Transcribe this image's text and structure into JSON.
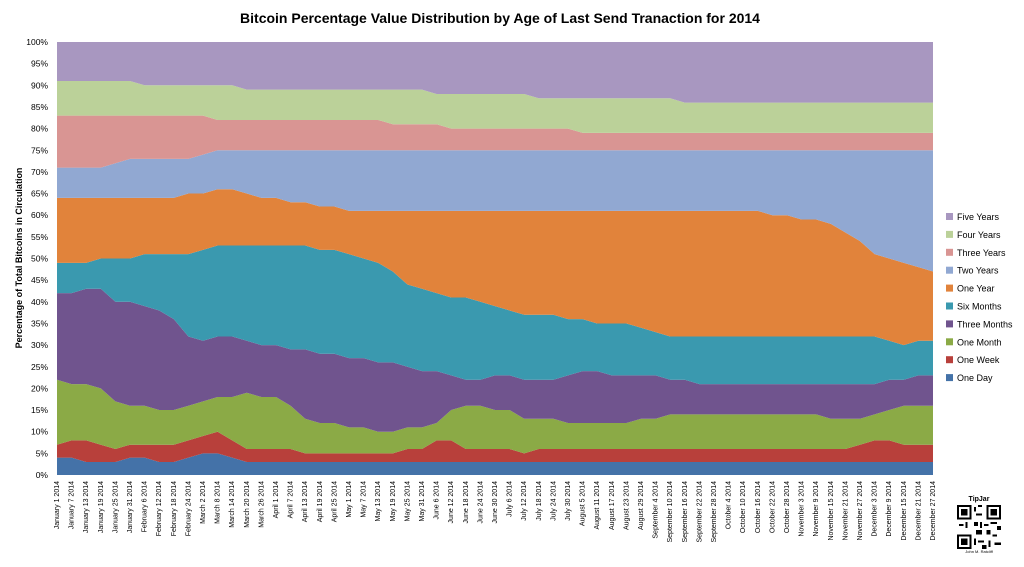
{
  "chart_data": {
    "type": "area",
    "stacked": true,
    "normalized": true,
    "title": "Bitcoin Percentage Value Distribution by Age of Last Send Tranaction for 2014",
    "ylabel": "Percentage of Total Bitcoins in Circulation",
    "xlabel": "",
    "ylim": [
      0,
      100
    ],
    "yticks": [
      "0%",
      "5%",
      "10%",
      "15%",
      "20%",
      "25%",
      "30%",
      "35%",
      "40%",
      "45%",
      "50%",
      "55%",
      "60%",
      "65%",
      "70%",
      "75%",
      "80%",
      "85%",
      "90%",
      "95%",
      "100%"
    ],
    "categories": [
      "January 1 2014",
      "January 7 2014",
      "January 13 2014",
      "January 19 2014",
      "January 25 2014",
      "January 31 2014",
      "February 6 2014",
      "February 12 2014",
      "February 18 2014",
      "February 24 2014",
      "March 2 2014",
      "March 8 2014",
      "March 14 2014",
      "March 20 2014",
      "March 26 2014",
      "April 1 2014",
      "April 7 2014",
      "April 13 2014",
      "April 19 2014",
      "April 25 2014",
      "May 1 2014",
      "May 7 2014",
      "May 13 2014",
      "May 19 2014",
      "May 25 2014",
      "May 31 2014",
      "June 6 2014",
      "June 12 2014",
      "June 18 2014",
      "June 24 2014",
      "June 30 2014",
      "July 6 2014",
      "July 12 2014",
      "July 18 2014",
      "July 24 2014",
      "July 30 2014",
      "August 5 2014",
      "August 11 2014",
      "August 17 2014",
      "August 23 2014",
      "August 29 2014",
      "September 4 2014",
      "September 10 2014",
      "September 16 2014",
      "September 22 2014",
      "September 28 2014",
      "October 4 2014",
      "October 10 2014",
      "October 16 2014",
      "October 22 2014",
      "October 28 2014",
      "November 3 2014",
      "November 9 2014",
      "November 15 2014",
      "November 21 2014",
      "November 27 2014",
      "December 3 2014",
      "December 9 2014",
      "December 15 2014",
      "December 21 2014",
      "December 27 2014"
    ],
    "cumulative_upper_bounds_percent": {
      "One Day": [
        4,
        4,
        3,
        3,
        3,
        4,
        4,
        3,
        3,
        4,
        5,
        5,
        4,
        3,
        3,
        3,
        3,
        3,
        3,
        3,
        3,
        3,
        3,
        3,
        3,
        3,
        3,
        3,
        3,
        3,
        3,
        3,
        3,
        3,
        3,
        3,
        3,
        3,
        3,
        3,
        3,
        3,
        3,
        3,
        3,
        3,
        3,
        3,
        3,
        3,
        3,
        3,
        3,
        3,
        3,
        3,
        3,
        3,
        3,
        3,
        3
      ],
      "One Week": [
        7,
        8,
        8,
        7,
        6,
        7,
        7,
        7,
        7,
        8,
        9,
        10,
        8,
        6,
        6,
        6,
        6,
        5,
        5,
        5,
        5,
        5,
        5,
        5,
        6,
        6,
        8,
        8,
        6,
        6,
        6,
        6,
        5,
        6,
        6,
        6,
        6,
        6,
        6,
        6,
        6,
        6,
        6,
        6,
        6,
        6,
        6,
        6,
        6,
        6,
        6,
        6,
        6,
        6,
        6,
        7,
        8,
        8,
        7,
        7,
        7
      ],
      "One Month": [
        22,
        21,
        21,
        20,
        17,
        16,
        16,
        15,
        15,
        16,
        17,
        18,
        18,
        19,
        18,
        18,
        16,
        13,
        12,
        12,
        11,
        11,
        10,
        10,
        11,
        11,
        12,
        15,
        16,
        16,
        15,
        15,
        13,
        13,
        13,
        12,
        12,
        12,
        12,
        12,
        13,
        13,
        14,
        14,
        14,
        14,
        14,
        14,
        14,
        14,
        14,
        14,
        14,
        13,
        13,
        13,
        14,
        15,
        16,
        16,
        16
      ],
      "Three Months": [
        42,
        42,
        43,
        43,
        40,
        40,
        39,
        38,
        36,
        32,
        31,
        32,
        32,
        31,
        30,
        30,
        29,
        29,
        28,
        28,
        27,
        27,
        26,
        26,
        25,
        24,
        24,
        23,
        22,
        22,
        23,
        23,
        22,
        22,
        22,
        23,
        24,
        24,
        23,
        23,
        23,
        23,
        22,
        22,
        21,
        21,
        21,
        21,
        21,
        21,
        21,
        21,
        21,
        21,
        21,
        21,
        21,
        22,
        22,
        23,
        23
      ],
      "Six Months": [
        49,
        49,
        49,
        50,
        50,
        50,
        51,
        51,
        51,
        51,
        52,
        53,
        53,
        53,
        53,
        53,
        53,
        53,
        52,
        52,
        51,
        50,
        49,
        47,
        44,
        43,
        42,
        41,
        41,
        40,
        39,
        38,
        37,
        37,
        37,
        36,
        36,
        35,
        35,
        35,
        34,
        33,
        32,
        32,
        32,
        32,
        32,
        32,
        32,
        32,
        32,
        32,
        32,
        32,
        32,
        32,
        32,
        31,
        30,
        31,
        31
      ],
      "One Year": [
        64,
        64,
        64,
        64,
        64,
        64,
        64,
        64,
        64,
        65,
        65,
        66,
        66,
        65,
        64,
        64,
        63,
        63,
        62,
        62,
        61,
        61,
        61,
        61,
        61,
        61,
        61,
        61,
        61,
        61,
        61,
        61,
        61,
        61,
        61,
        61,
        61,
        61,
        61,
        61,
        61,
        61,
        61,
        61,
        61,
        61,
        61,
        61,
        61,
        60,
        60,
        59,
        59,
        58,
        56,
        54,
        51,
        50,
        49,
        48,
        47
      ],
      "Two Years": [
        71,
        71,
        71,
        71,
        72,
        73,
        73,
        73,
        73,
        73,
        74,
        75,
        75,
        75,
        75,
        75,
        75,
        75,
        75,
        75,
        75,
        75,
        75,
        75,
        75,
        75,
        75,
        75,
        75,
        75,
        75,
        75,
        75,
        75,
        75,
        75,
        75,
        75,
        75,
        75,
        75,
        75,
        75,
        75,
        75,
        75,
        75,
        75,
        75,
        75,
        75,
        75,
        75,
        75,
        75,
        75,
        75,
        75,
        75,
        75,
        75
      ],
      "Three Years": [
        83,
        83,
        83,
        83,
        83,
        83,
        83,
        83,
        83,
        83,
        83,
        82,
        82,
        82,
        82,
        82,
        82,
        82,
        82,
        82,
        82,
        82,
        82,
        81,
        81,
        81,
        81,
        80,
        80,
        80,
        80,
        80,
        80,
        80,
        80,
        80,
        79,
        79,
        79,
        79,
        79,
        79,
        79,
        79,
        79,
        79,
        79,
        79,
        79,
        79,
        79,
        79,
        79,
        79,
        79,
        79,
        79,
        79,
        79,
        79,
        79
      ],
      "Four Years": [
        91,
        91,
        91,
        91,
        91,
        91,
        90,
        90,
        90,
        90,
        90,
        90,
        90,
        89,
        89,
        89,
        89,
        89,
        89,
        89,
        89,
        89,
        89,
        89,
        89,
        89,
        88,
        88,
        88,
        88,
        88,
        88,
        88,
        87,
        87,
        87,
        87,
        87,
        87,
        87,
        87,
        87,
        87,
        86,
        86,
        86,
        86,
        86,
        86,
        86,
        86,
        86,
        86,
        86,
        86,
        86,
        86,
        86,
        86,
        86,
        86
      ],
      "Five Years": [
        100,
        100,
        100,
        100,
        100,
        100,
        100,
        100,
        100,
        100,
        100,
        100,
        100,
        100,
        100,
        100,
        100,
        100,
        100,
        100,
        100,
        100,
        100,
        100,
        100,
        100,
        100,
        100,
        100,
        100,
        100,
        100,
        100,
        100,
        100,
        100,
        100,
        100,
        100,
        100,
        100,
        100,
        100,
        100,
        100,
        100,
        100,
        100,
        100,
        100,
        100,
        100,
        100,
        100,
        100,
        100,
        100,
        100,
        100,
        100,
        100
      ]
    },
    "series": [
      {
        "name": "One Day",
        "color": "#4472A8"
      },
      {
        "name": "One Week",
        "color": "#B8403B"
      },
      {
        "name": "One Month",
        "color": "#8BAA46"
      },
      {
        "name": "Three Months",
        "color": "#70548E"
      },
      {
        "name": "Six Months",
        "color": "#3A99AF"
      },
      {
        "name": "One Year",
        "color": "#E1833B"
      },
      {
        "name": "Two Years",
        "color": "#91A8D2"
      },
      {
        "name": "Three Years",
        "color": "#D99593"
      },
      {
        "name": "Four Years",
        "color": "#BBD199"
      },
      {
        "name": "Five Years",
        "color": "#A897C0"
      }
    ],
    "legend_position": "right",
    "legend_order": [
      "Five Years",
      "Four Years",
      "Three Years",
      "Two Years",
      "One Year",
      "Six Months",
      "Three Months",
      "One Month",
      "One Week",
      "One Day"
    ]
  },
  "tipjar": {
    "label": "TipJar",
    "caption": "John M. Ratcliff"
  }
}
